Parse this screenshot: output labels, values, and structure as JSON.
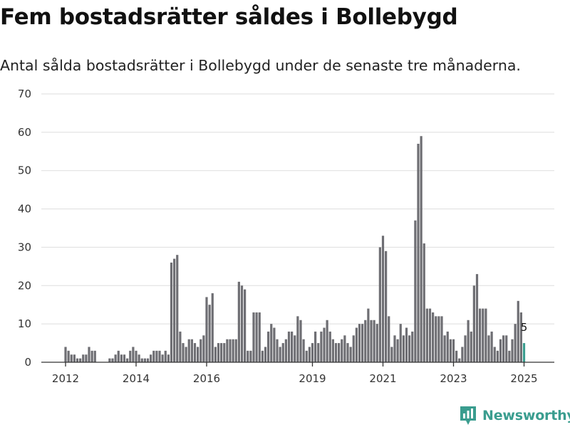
{
  "title": "Fem bostadsrätter såldes i Bollebygd",
  "subtitle": "Antal sålda bostadsrätter i Bollebygd under de senaste tre månaderna.",
  "brand": {
    "name": "Newsworthy",
    "color": "#3a9d8f",
    "icon": "newsworthy-logo-icon"
  },
  "chart_data": {
    "type": "bar",
    "ylim": [
      0,
      70
    ],
    "yticks": [
      0,
      10,
      20,
      30,
      40,
      50,
      60,
      70
    ],
    "xticks": [
      {
        "label": "2012",
        "at": "2012-01"
      },
      {
        "label": "2014",
        "at": "2014-01"
      },
      {
        "label": "2016",
        "at": "2016-01"
      },
      {
        "label": "2019",
        "at": "2019-01"
      },
      {
        "label": "2021",
        "at": "2021-01"
      },
      {
        "label": "2023",
        "at": "2023-01"
      },
      {
        "label": "2025",
        "at": "2025-01"
      }
    ],
    "grid": true,
    "colors": {
      "bar": "#6e6e73",
      "highlight": "#3a9d8f",
      "grid": "#dddddd",
      "axis": "#333333"
    },
    "x": [
      "2012-01",
      "2012-02",
      "2012-03",
      "2012-04",
      "2012-05",
      "2012-06",
      "2012-07",
      "2012-08",
      "2012-09",
      "2012-10",
      "2012-11",
      "2012-12",
      "2013-01",
      "2013-02",
      "2013-03",
      "2013-04",
      "2013-05",
      "2013-06",
      "2013-07",
      "2013-08",
      "2013-09",
      "2013-10",
      "2013-11",
      "2013-12",
      "2014-01",
      "2014-02",
      "2014-03",
      "2014-04",
      "2014-05",
      "2014-06",
      "2014-07",
      "2014-08",
      "2014-09",
      "2014-10",
      "2014-11",
      "2014-12",
      "2015-01",
      "2015-02",
      "2015-03",
      "2015-04",
      "2015-05",
      "2015-06",
      "2015-07",
      "2015-08",
      "2015-09",
      "2015-10",
      "2015-11",
      "2015-12",
      "2016-01",
      "2016-02",
      "2016-03",
      "2016-04",
      "2016-05",
      "2016-06",
      "2016-07",
      "2016-08",
      "2016-09",
      "2016-10",
      "2016-11",
      "2016-12",
      "2017-01",
      "2017-02",
      "2017-03",
      "2017-04",
      "2017-05",
      "2017-06",
      "2017-07",
      "2017-08",
      "2017-09",
      "2017-10",
      "2017-11",
      "2017-12",
      "2018-01",
      "2018-02",
      "2018-03",
      "2018-04",
      "2018-05",
      "2018-06",
      "2018-07",
      "2018-08",
      "2018-09",
      "2018-10",
      "2018-11",
      "2018-12",
      "2019-01",
      "2019-02",
      "2019-03",
      "2019-04",
      "2019-05",
      "2019-06",
      "2019-07",
      "2019-08",
      "2019-09",
      "2019-10",
      "2019-11",
      "2019-12",
      "2020-01",
      "2020-02",
      "2020-03",
      "2020-04",
      "2020-05",
      "2020-06",
      "2020-07",
      "2020-08",
      "2020-09",
      "2020-10",
      "2020-11",
      "2020-12",
      "2021-01",
      "2021-02",
      "2021-03",
      "2021-04",
      "2021-05",
      "2021-06",
      "2021-07",
      "2021-08",
      "2021-09",
      "2021-10",
      "2021-11",
      "2021-12",
      "2022-01",
      "2022-02",
      "2022-03",
      "2022-04",
      "2022-05",
      "2022-06",
      "2022-07",
      "2022-08",
      "2022-09",
      "2022-10",
      "2022-11",
      "2022-12",
      "2023-01",
      "2023-02",
      "2023-03",
      "2023-04",
      "2023-05",
      "2023-06",
      "2023-07",
      "2023-08",
      "2023-09",
      "2023-10",
      "2023-11",
      "2023-12",
      "2024-01",
      "2024-02",
      "2024-03",
      "2024-04",
      "2024-05",
      "2024-06",
      "2024-07",
      "2024-08",
      "2024-09",
      "2024-10",
      "2024-11",
      "2024-12",
      "2025-01"
    ],
    "values": [
      4,
      3,
      2,
      2,
      1,
      1,
      2,
      2,
      4,
      3,
      3,
      0,
      0,
      0,
      0,
      1,
      1,
      2,
      3,
      2,
      2,
      1,
      3,
      4,
      3,
      2,
      1,
      1,
      1,
      2,
      3,
      3,
      3,
      2,
      3,
      2,
      26,
      27,
      28,
      8,
      5,
      4,
      6,
      6,
      5,
      4,
      6,
      7,
      17,
      15,
      18,
      4,
      5,
      5,
      5,
      6,
      6,
      6,
      6,
      21,
      20,
      19,
      3,
      3,
      13,
      13,
      13,
      3,
      4,
      8,
      10,
      9,
      6,
      4,
      5,
      6,
      8,
      8,
      7,
      12,
      11,
      6,
      3,
      4,
      5,
      8,
      5,
      8,
      9,
      11,
      8,
      6,
      5,
      5,
      6,
      7,
      5,
      4,
      7,
      9,
      10,
      10,
      11,
      14,
      11,
      11,
      10,
      30,
      33,
      29,
      12,
      4,
      7,
      6,
      10,
      7,
      9,
      7,
      8,
      37,
      57,
      59,
      31,
      14,
      14,
      13,
      12,
      12,
      12,
      7,
      8,
      6,
      6,
      3,
      1,
      4,
      7,
      11,
      8,
      20,
      23,
      14,
      14,
      14,
      7,
      8,
      4,
      3,
      6,
      7,
      7,
      3,
      6,
      10,
      16,
      13,
      5
    ],
    "data_labels": [
      {
        "x": "2025-01",
        "value": 5,
        "text": "5"
      }
    ],
    "highlight": [
      "2025-01"
    ]
  }
}
